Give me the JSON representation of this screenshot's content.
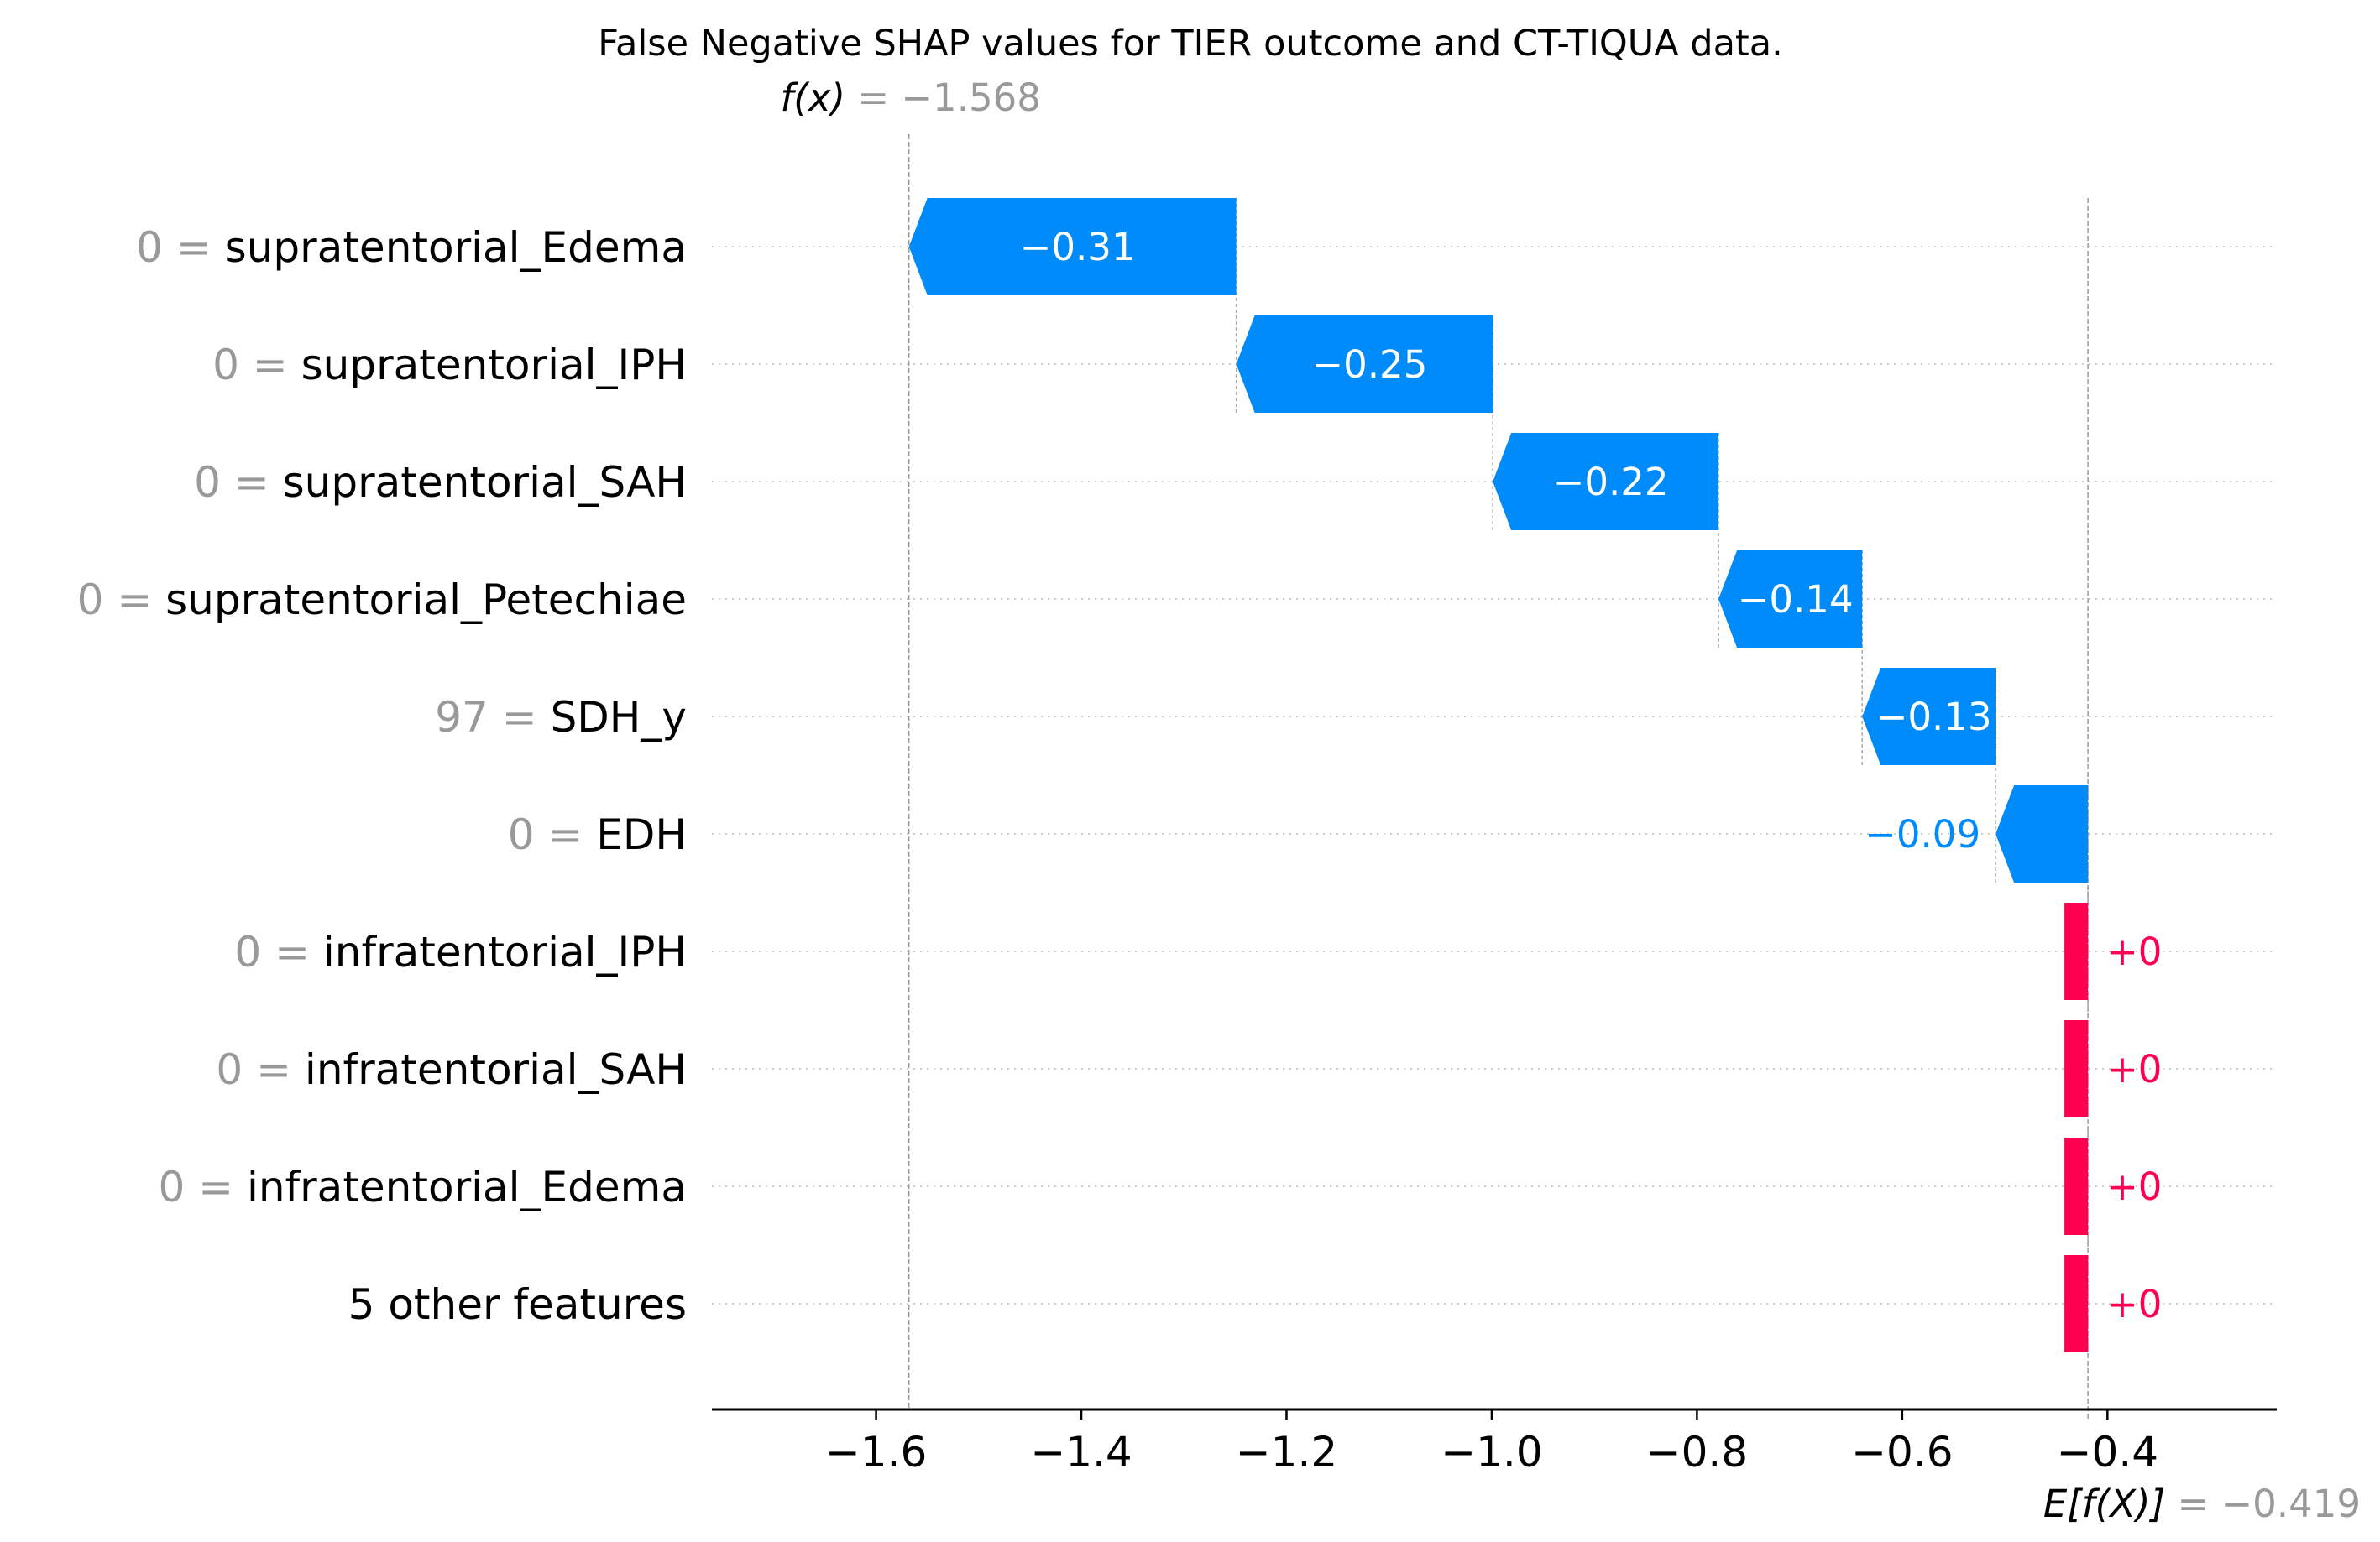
{
  "chart_data": {
    "type": "bar",
    "subtype": "shap-waterfall",
    "title": "False Negative SHAP values for TIER outcome and CT-TIQUA data.",
    "fx_label": "f(x)",
    "fx_value_text": "= −1.568",
    "fx": -1.568,
    "efx_label": "E[f(X)]",
    "efx_value_text": "= −0.419",
    "efx": -0.419,
    "xlim": [
      -1.76,
      -0.235
    ],
    "xticks": [
      -1.6,
      -1.4,
      -1.2,
      -1.0,
      -0.8,
      -0.6,
      -0.4
    ],
    "xtick_labels": [
      "−1.6",
      "−1.4",
      "−1.2",
      "−1.0",
      "−0.8",
      "−0.6",
      "−0.4"
    ],
    "grid": "horizontal dotted per row",
    "colors": {
      "negative": "#008bfb",
      "positive": "#ff0051",
      "feature_value": "#999999",
      "axis": "#000000"
    },
    "features": [
      {
        "value_text": "0 =",
        "name": "supratentorial_Edema",
        "shap": -0.31,
        "label": "−0.31"
      },
      {
        "value_text": "0 =",
        "name": "supratentorial_IPH",
        "shap": -0.25,
        "label": "−0.25"
      },
      {
        "value_text": "0 =",
        "name": "supratentorial_SAH",
        "shap": -0.22,
        "label": "−0.22"
      },
      {
        "value_text": "0 =",
        "name": "supratentorial_Petechiae",
        "shap": -0.14,
        "label": "−0.14"
      },
      {
        "value_text": "97 =",
        "name": "SDH_y",
        "shap": -0.13,
        "label": "−0.13"
      },
      {
        "value_text": "0 =",
        "name": "EDH",
        "shap": -0.09,
        "label": "−0.09"
      },
      {
        "value_text": "0 =",
        "name": "infratentorial_IPH",
        "shap": 0,
        "label": "+0"
      },
      {
        "value_text": "0 =",
        "name": "infratentorial_SAH",
        "shap": 0,
        "label": "+0"
      },
      {
        "value_text": "0 =",
        "name": "infratentorial_Edema",
        "shap": 0,
        "label": "+0"
      },
      {
        "value_text": "",
        "name": "5 other features",
        "shap": 0,
        "label": "+0"
      }
    ]
  }
}
